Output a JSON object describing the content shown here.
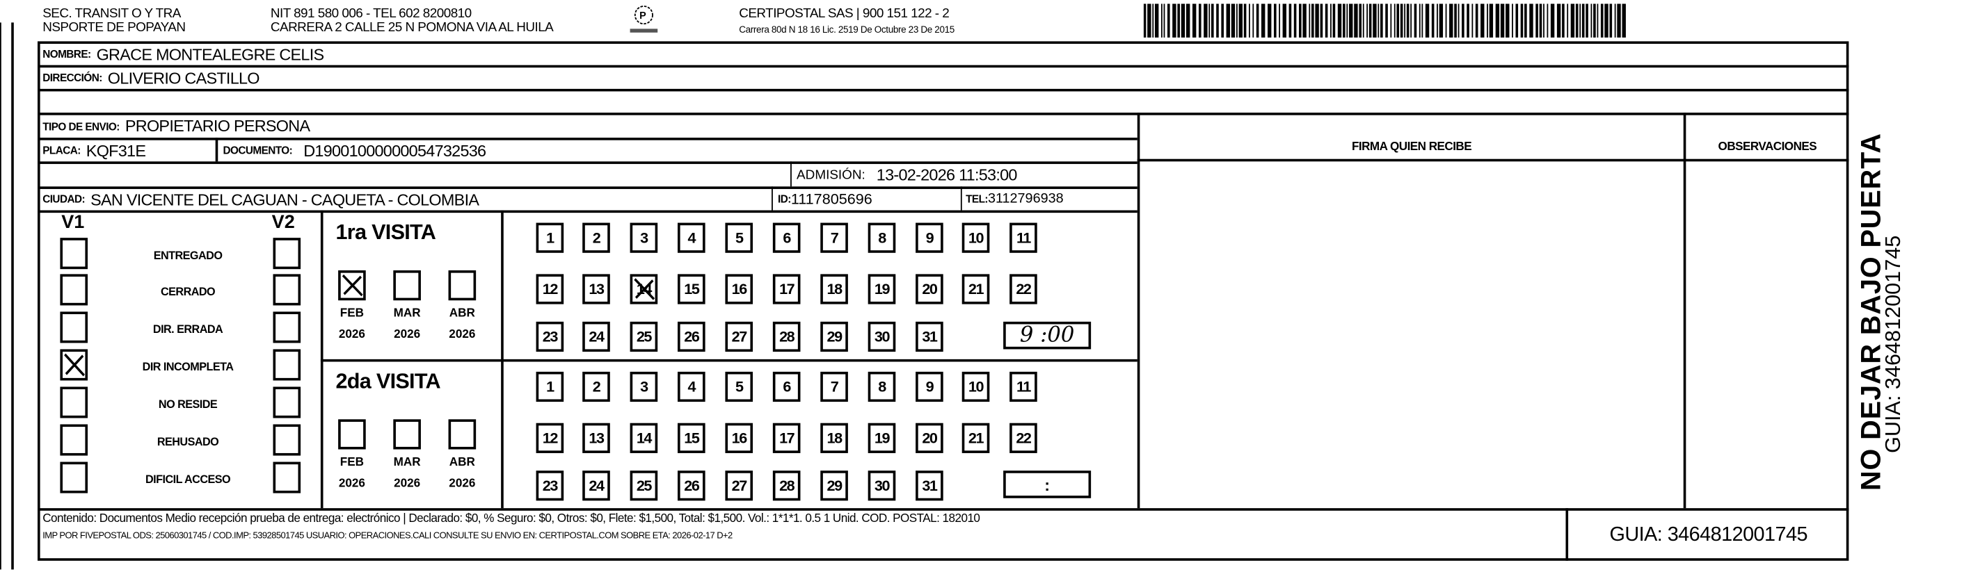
{
  "header": {
    "sender_line1": "SEC. TRANSIT O Y TRA",
    "sender_line2": "NSPORTE DE POPAYAN",
    "nit_line": "NIT 891 580 006 - TEL 602 8200810",
    "address_line": "CARRERA 2 CALLE 25 N POMONA VIA AL HUILA",
    "company_line": "CERTIPOSTAL SAS | 900 151 122 - 2",
    "license_line": "Carrera 80d N 18 16  Lic. 2519 De Octubre 23 De 2015",
    "logo_icon": "certipostal-logo",
    "barcode_icon": "barcode"
  },
  "recipient": {
    "nombre_label": "NOMBRE:",
    "nombre": "GRACE MONTEALEGRE CELIS",
    "direccion_label": "DIRECCIÓN:",
    "direccion": "OLIVERIO CASTILLO",
    "tipo_label": "TIPO DE ENVIO:",
    "tipo": "PROPIETARIO PERSONA",
    "placa_label": "PLACA:",
    "placa": "KQF31E",
    "documento_label": "DOCUMENTO:",
    "documento": "D19001000000054732536",
    "admision_label": "ADMISIÓN:",
    "admision": "13-02-2026 11:53:00",
    "ciudad_label": "CIUDAD:",
    "ciudad": "SAN VICENTE DEL CAGUAN - CAQUETA - COLOMBIA",
    "id_label": "ID:",
    "id": "1117805696",
    "tel_label": "TEL:",
    "tel": "3112796938"
  },
  "columns": {
    "firma": "FIRMA QUIEN RECIBE",
    "observaciones": "OBSERVACIONES"
  },
  "status": {
    "v1_label": "V1",
    "v2_label": "V2",
    "items": [
      {
        "label": "ENTREGADO",
        "v1": false,
        "v2": false
      },
      {
        "label": "CERRADO",
        "v1": false,
        "v2": false
      },
      {
        "label": "DIR. ERRADA",
        "v1": false,
        "v2": false
      },
      {
        "label": "DIR INCOMPLETA",
        "v1": true,
        "v2": false
      },
      {
        "label": "NO RESIDE",
        "v1": false,
        "v2": false
      },
      {
        "label": "REHUSADO",
        "v1": false,
        "v2": false
      },
      {
        "label": "DIFICIL ACCESO",
        "v1": false,
        "v2": false
      }
    ]
  },
  "visits": [
    {
      "title": "1ra VISITA",
      "months": [
        {
          "month": "FEB",
          "year": "2026",
          "checked": true
        },
        {
          "month": "MAR",
          "year": "2026",
          "checked": false
        },
        {
          "month": "ABR",
          "year": "2026",
          "checked": false
        }
      ],
      "days": [
        "1",
        "2",
        "3",
        "4",
        "5",
        "6",
        "7",
        "8",
        "9",
        "10",
        "11",
        "12",
        "13",
        "14",
        "15",
        "16",
        "17",
        "18",
        "19",
        "20",
        "21",
        "22",
        "23",
        "24",
        "25",
        "26",
        "27",
        "28",
        "29",
        "30",
        "31"
      ],
      "marked_days": [
        "14"
      ],
      "time": "9 :00"
    },
    {
      "title": "2da VISITA",
      "months": [
        {
          "month": "FEB",
          "year": "2026",
          "checked": false
        },
        {
          "month": "MAR",
          "year": "2026",
          "checked": false
        },
        {
          "month": "ABR",
          "year": "2026",
          "checked": false
        }
      ],
      "days": [
        "1",
        "2",
        "3",
        "4",
        "5",
        "6",
        "7",
        "8",
        "9",
        "10",
        "11",
        "12",
        "13",
        "14",
        "15",
        "16",
        "17",
        "18",
        "19",
        "20",
        "21",
        "22",
        "23",
        "24",
        "25",
        "26",
        "27",
        "28",
        "29",
        "30",
        "31"
      ],
      "marked_days": [],
      "time": ":"
    }
  ],
  "footer": {
    "line1": "Contenido: Documentos Medio recepción prueba de entrega: electrónico | Declarado: $0, % Seguro: $0, Otros: $0, Flete: $1,500, Total: $1,500. Vol.: 1*1*1. 0.5  1 Unid. COD. POSTAL: 182010",
    "line2": "IMP POR FIVEPOSTAL ODS: 25060301745 / COD.IMP: 53928501745 USUARIO: OPERACIONES.CALI CONSULTE SU ENVIO EN: CERTIPOSTAL.COM SOBRE ETA: 2026-02-17 D+2",
    "guia": "GUIA: 3464812001745"
  },
  "side": {
    "warning": "NO DEJAR BAJO PUERTA",
    "guia": "GUIA: 3464812001745"
  }
}
